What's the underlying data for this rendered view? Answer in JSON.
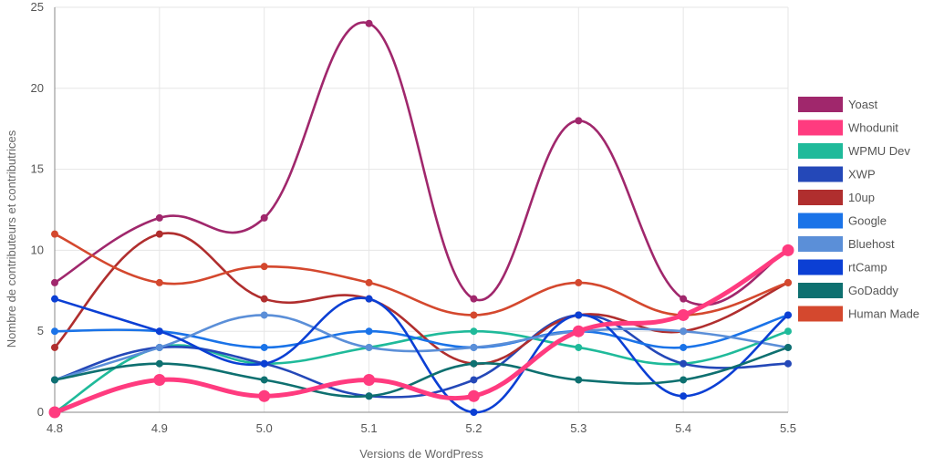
{
  "chart_data": {
    "type": "line",
    "xlabel": "Versions de WordPress",
    "ylabel": "Nombre de contributeurs et contributrices",
    "categories": [
      "4.8",
      "4.9",
      "5.0",
      "5.1",
      "5.2",
      "5.3",
      "5.4",
      "5.5"
    ],
    "ylim": [
      0,
      25
    ],
    "yticks": [
      "0",
      "5",
      "10",
      "15",
      "20",
      "25"
    ],
    "grid": true,
    "legend_position": "right",
    "series": [
      {
        "name": "Yoast",
        "color": "#A0276C",
        "values": [
          8,
          12,
          12,
          24,
          7,
          18,
          7,
          10
        ]
      },
      {
        "name": "Whodunit",
        "color": "#FF3B7F",
        "values": [
          0,
          2,
          1,
          2,
          1,
          5,
          6,
          10
        ],
        "emphasis": true
      },
      {
        "name": "WPMU Dev",
        "color": "#1FBA9A",
        "values": [
          0,
          4,
          3,
          4,
          5,
          4,
          3,
          5
        ]
      },
      {
        "name": "XWP",
        "color": "#2448B8",
        "values": [
          2,
          4,
          3,
          1,
          2,
          6,
          3,
          3
        ]
      },
      {
        "name": "10up",
        "color": "#B02E2E",
        "values": [
          4,
          11,
          7,
          7,
          3,
          6,
          5,
          8
        ]
      },
      {
        "name": "Google",
        "color": "#1A73E8",
        "values": [
          5,
          5,
          4,
          5,
          4,
          5,
          4,
          6
        ]
      },
      {
        "name": "Bluehost",
        "color": "#5B8FD8",
        "values": [
          2,
          4,
          6,
          4,
          4,
          5,
          5,
          4
        ]
      },
      {
        "name": "rtCamp",
        "color": "#0B3FD4",
        "values": [
          7,
          5,
          3,
          7,
          0,
          6,
          1,
          6
        ]
      },
      {
        "name": "GoDaddy",
        "color": "#0E7070",
        "values": [
          2,
          3,
          2,
          1,
          3,
          2,
          2,
          4
        ]
      },
      {
        "name": "Human Made",
        "color": "#D4482E",
        "values": [
          11,
          8,
          9,
          8,
          6,
          8,
          6,
          8
        ]
      }
    ]
  }
}
